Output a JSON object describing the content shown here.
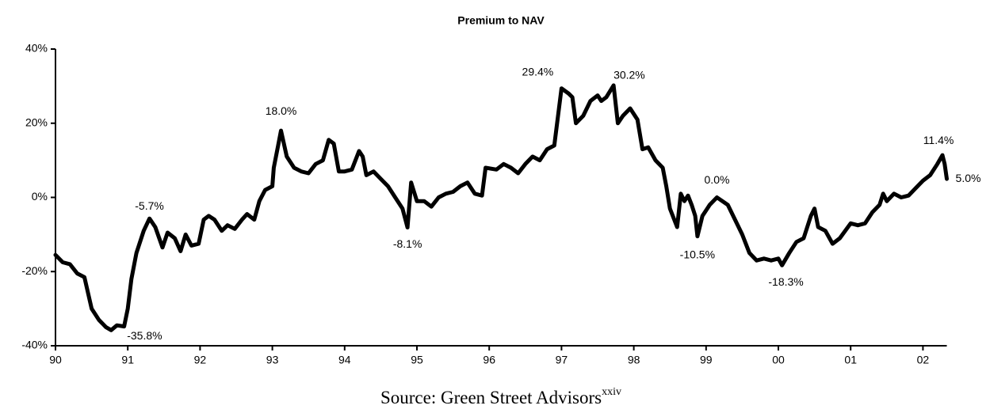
{
  "chart_data": {
    "type": "line",
    "title": "Premium to NAV",
    "source": "Source: Green Street Advisors",
    "source_note": "xxiv",
    "color": "#000000",
    "xlim": [
      1990,
      2002.33
    ],
    "xticks": [
      {
        "value": 1990,
        "label": "90"
      },
      {
        "value": 1991,
        "label": "91"
      },
      {
        "value": 1992,
        "label": "92"
      },
      {
        "value": 1993,
        "label": "93"
      },
      {
        "value": 1994,
        "label": "94"
      },
      {
        "value": 1995,
        "label": "95"
      },
      {
        "value": 1996,
        "label": "96"
      },
      {
        "value": 1997,
        "label": "97"
      },
      {
        "value": 1998,
        "label": "98"
      },
      {
        "value": 1999,
        "label": "99"
      },
      {
        "value": 2000,
        "label": "00"
      },
      {
        "value": 2001,
        "label": "01"
      },
      {
        "value": 2002,
        "label": "02"
      }
    ],
    "ylim": [
      -40,
      40
    ],
    "yticks": [
      {
        "value": -40,
        "label": "-40%"
      },
      {
        "value": -20,
        "label": "-20%"
      },
      {
        "value": 0,
        "label": "0%"
      },
      {
        "value": 20,
        "label": "20%"
      },
      {
        "value": 40,
        "label": "40%"
      }
    ],
    "x": [
      1990.0,
      1990.1,
      1990.2,
      1990.3,
      1990.4,
      1990.5,
      1990.6,
      1990.7,
      1990.77,
      1990.85,
      1990.95,
      1991.0,
      1991.05,
      1991.12,
      1991.22,
      1991.3,
      1991.38,
      1991.48,
      1991.55,
      1991.65,
      1991.73,
      1991.8,
      1991.88,
      1991.98,
      1992.05,
      1992.12,
      1992.2,
      1992.3,
      1992.38,
      1992.48,
      1992.58,
      1992.65,
      1992.75,
      1992.82,
      1992.9,
      1993.0,
      1993.02,
      1993.08,
      1993.12,
      1993.2,
      1993.3,
      1993.4,
      1993.5,
      1993.6,
      1993.7,
      1993.78,
      1993.85,
      1993.92,
      1994.0,
      1994.1,
      1994.2,
      1994.25,
      1994.3,
      1994.4,
      1994.5,
      1994.6,
      1994.7,
      1994.8,
      1994.87,
      1994.92,
      1995.0,
      1995.1,
      1995.2,
      1995.3,
      1995.4,
      1995.5,
      1995.6,
      1995.7,
      1995.8,
      1995.9,
      1995.95,
      1996.1,
      1996.2,
      1996.3,
      1996.4,
      1996.5,
      1996.6,
      1996.7,
      1996.8,
      1996.9,
      1997.0,
      1997.1,
      1997.15,
      1997.2,
      1997.3,
      1997.4,
      1997.5,
      1997.55,
      1997.62,
      1997.72,
      1997.78,
      1997.85,
      1997.95,
      1998.05,
      1998.12,
      1998.2,
      1998.3,
      1998.4,
      1998.45,
      1998.5,
      1998.6,
      1998.65,
      1998.7,
      1998.75,
      1998.8,
      1998.85,
      1998.88,
      1998.95,
      1999.05,
      1999.15,
      1999.3,
      1999.4,
      1999.5,
      1999.6,
      1999.7,
      1999.8,
      1999.9,
      2000.0,
      2000.05,
      2000.15,
      2000.25,
      2000.35,
      2000.45,
      2000.5,
      2000.55,
      2000.65,
      2000.75,
      2000.85,
      2001.0,
      2001.1,
      2001.2,
      2001.3,
      2001.4,
      2001.45,
      2001.5,
      2001.6,
      2001.7,
      2001.8,
      2001.9,
      2002.0,
      2002.1,
      2002.2,
      2002.27,
      2002.3,
      2002.33
    ],
    "values": [
      -15.5,
      -17.5,
      -18,
      -20.5,
      -21.5,
      -30,
      -33,
      -35,
      -35.8,
      -34.5,
      -34.8,
      -30,
      -22,
      -15,
      -9,
      -5.7,
      -8,
      -13.5,
      -9.5,
      -11,
      -14.5,
      -10,
      -13,
      -12.5,
      -6,
      -5,
      -6,
      -9,
      -7.5,
      -8.5,
      -6,
      -4.5,
      -6,
      -1,
      2,
      3,
      8,
      14,
      18.0,
      11,
      8,
      7,
      6.5,
      9,
      10,
      15.5,
      14.5,
      7,
      7,
      7.5,
      12.5,
      11,
      6,
      7,
      5,
      3,
      0,
      -3,
      -8.1,
      4,
      -1,
      -1,
      -2.5,
      0,
      1,
      1.5,
      3,
      4,
      1,
      0.5,
      8,
      7.5,
      9,
      8,
      6.5,
      9,
      11,
      10,
      13,
      14,
      29.4,
      28,
      27,
      20,
      22,
      26,
      27.5,
      26,
      27,
      30.2,
      20,
      22,
      24,
      21,
      13,
      13.5,
      10,
      8,
      3,
      -3,
      -8,
      1,
      -1,
      0.5,
      -2,
      -5,
      -10.5,
      -5,
      -2,
      0.0,
      -2,
      -6,
      -10,
      -15,
      -17,
      -16.5,
      -17,
      -16.5,
      -18.3,
      -15,
      -12,
      -11,
      -5,
      -3,
      -8,
      -9,
      -12.5,
      -11,
      -7,
      -7.5,
      -7,
      -4,
      -2,
      1,
      -1,
      1,
      0,
      0.5,
      2.5,
      4.5,
      6,
      9,
      11.4,
      9,
      5.0
    ],
    "annotations": [
      {
        "label": "-35.8%",
        "x": 1990.77,
        "y": -35.8
      },
      {
        "label": "-5.7%",
        "x": 1991.3,
        "y": -5.7
      },
      {
        "label": "18.0%",
        "x": 1993.12,
        "y": 18.0
      },
      {
        "label": "-8.1%",
        "x": 1994.87,
        "y": -8.1
      },
      {
        "label": "29.4%",
        "x": 1997.0,
        "y": 29.4
      },
      {
        "label": "30.2%",
        "x": 1997.72,
        "y": 30.2
      },
      {
        "label": "-10.5%",
        "x": 1998.88,
        "y": -10.5
      },
      {
        "label": "0.0%",
        "x": 1999.15,
        "y": 0.0
      },
      {
        "label": "-18.3%",
        "x": 2000.05,
        "y": -18.3
      },
      {
        "label": "11.4%",
        "x": 2002.27,
        "y": 11.4
      },
      {
        "label": "5.0%",
        "x": 2002.33,
        "y": 5.0
      }
    ]
  }
}
